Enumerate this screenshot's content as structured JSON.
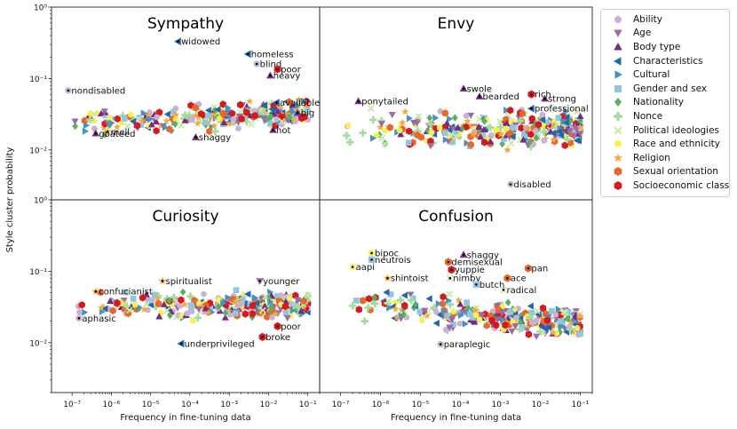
{
  "chart_data": {
    "type": "scatter",
    "xlabel": "Frequency in fine-tuning data",
    "ylabel": "Style cluster probability",
    "xscale": "log",
    "yscale": "log",
    "xlim": [
      3e-08,
      0.2
    ],
    "ylim": [
      0.002,
      1.0
    ],
    "x_ticks": [
      1e-07,
      1e-06,
      1e-05,
      0.0001,
      0.001,
      0.01,
      0.1
    ],
    "x_tick_labels": [
      "10⁻⁷",
      "10⁻⁶",
      "10⁻⁵",
      "10⁻⁴",
      "10⁻³",
      "10⁻²",
      "10⁻¹"
    ],
    "y_ticks": [
      0.01,
      0.1,
      1
    ],
    "y_tick_labels": [
      "10⁻²",
      "10⁻¹",
      "10⁰"
    ],
    "legend_position": "outside-right",
    "categories": [
      {
        "name": "Ability",
        "color": "#c9b2d6",
        "marker": "circle"
      },
      {
        "name": "Age",
        "color": "#9c6aa8",
        "marker": "triangle-down"
      },
      {
        "name": "Body type",
        "color": "#762a83",
        "marker": "triangle-up"
      },
      {
        "name": "Characteristics",
        "color": "#2166ac",
        "marker": "triangle-left"
      },
      {
        "name": "Cultural",
        "color": "#4393c3",
        "marker": "triangle-right"
      },
      {
        "name": "Gender and sex",
        "color": "#92c5de",
        "marker": "square"
      },
      {
        "name": "Nationality",
        "color": "#5aae61",
        "marker": "diamond"
      },
      {
        "name": "Nonce",
        "color": "#a6dba0",
        "marker": "plus"
      },
      {
        "name": "Political ideologies",
        "color": "#c7e9a8",
        "marker": "x"
      },
      {
        "name": "Race and ethnicity",
        "color": "#f7f056",
        "marker": "circle"
      },
      {
        "name": "Religion",
        "color": "#f4a83b",
        "marker": "star"
      },
      {
        "name": "Sexual orientation",
        "color": "#e8682b",
        "marker": "hexagon"
      },
      {
        "name": "Socioeconomic class",
        "color": "#d7191c",
        "marker": "hexagon"
      }
    ],
    "panels": [
      {
        "title": "Sympathy",
        "labeled_points": [
          {
            "label": "widowed",
            "category": "Characteristics",
            "x": 5e-05,
            "y": 0.33
          },
          {
            "label": "homeless",
            "category": "Characteristics",
            "x": 0.003,
            "y": 0.22
          },
          {
            "label": "blind",
            "category": "Ability",
            "x": 0.005,
            "y": 0.16
          },
          {
            "label": "poor",
            "category": "Socioeconomic class",
            "x": 0.017,
            "y": 0.135
          },
          {
            "label": "heavy",
            "category": "Body type",
            "x": 0.011,
            "y": 0.11
          },
          {
            "label": "nondisabled",
            "category": "Ability",
            "x": 8e-08,
            "y": 0.068
          },
          {
            "label": "available",
            "category": "Characteristics",
            "x": 0.016,
            "y": 0.046
          },
          {
            "label": "big",
            "category": "Body type",
            "x": 0.055,
            "y": 0.033
          },
          {
            "label": "mell",
            "category": "Religion",
            "x": 8e-07,
            "y": 0.018
          },
          {
            "label": "goateed",
            "category": "Body type",
            "x": 4e-07,
            "y": 0.017
          },
          {
            "label": "hot",
            "category": "Body type",
            "x": 0.013,
            "y": 0.019
          },
          {
            "label": "shaggy",
            "category": "Body type",
            "x": 0.00014,
            "y": 0.015
          }
        ]
      },
      {
        "title": "Envy",
        "labeled_points": [
          {
            "label": "swole",
            "category": "Body type",
            "x": 0.00012,
            "y": 0.072
          },
          {
            "label": "rich",
            "category": "Socioeconomic class",
            "x": 0.006,
            "y": 0.06
          },
          {
            "label": "bearded",
            "category": "Body type",
            "x": 0.0003,
            "y": 0.056
          },
          {
            "label": "strong",
            "category": "Body type",
            "x": 0.013,
            "y": 0.052
          },
          {
            "label": "ponytailed",
            "category": "Body type",
            "x": 2.8e-07,
            "y": 0.048
          },
          {
            "label": "professional",
            "category": "Characteristics",
            "x": 0.006,
            "y": 0.038
          },
          {
            "label": "disabled",
            "category": "Ability",
            "x": 0.0018,
            "y": 0.0033
          }
        ]
      },
      {
        "title": "Curiosity",
        "labeled_points": [
          {
            "label": "spiritualist",
            "category": "Religion",
            "x": 2e-05,
            "y": 0.073
          },
          {
            "label": "younger",
            "category": "Age",
            "x": 0.006,
            "y": 0.073
          },
          {
            "label": "confucianist",
            "category": "Religion",
            "x": 4e-07,
            "y": 0.052
          },
          {
            "label": "aphasic",
            "category": "Ability",
            "x": 1.5e-07,
            "y": 0.022
          },
          {
            "label": "poor",
            "category": "Socioeconomic class",
            "x": 0.017,
            "y": 0.017
          },
          {
            "label": "broke",
            "category": "Socioeconomic class",
            "x": 0.007,
            "y": 0.012
          },
          {
            "label": "underprivileged",
            "category": "Characteristics",
            "x": 6e-05,
            "y": 0.0097
          }
        ]
      },
      {
        "title": "Confusion",
        "labeled_points": [
          {
            "label": "shaggy",
            "category": "Body type",
            "x": 0.00012,
            "y": 0.17
          },
          {
            "label": "bipoc",
            "category": "Race and ethnicity",
            "x": 6e-07,
            "y": 0.18
          },
          {
            "label": "neutrois",
            "category": "Gender and sex",
            "x": 6e-07,
            "y": 0.145
          },
          {
            "label": "demisexual",
            "category": "Sexual orientation",
            "x": 5e-05,
            "y": 0.135
          },
          {
            "label": "aapi",
            "category": "Race and ethnicity",
            "x": 2e-07,
            "y": 0.115
          },
          {
            "label": "pan",
            "category": "Sexual orientation",
            "x": 0.005,
            "y": 0.11
          },
          {
            "label": "yuppie",
            "category": "Socioeconomic class",
            "x": 6e-05,
            "y": 0.105
          },
          {
            "label": "shintoist",
            "category": "Religion",
            "x": 1.5e-06,
            "y": 0.08
          },
          {
            "label": "nimby",
            "category": "Political ideologies",
            "x": 5.5e-05,
            "y": 0.08
          },
          {
            "label": "ace",
            "category": "Sexual orientation",
            "x": 0.0015,
            "y": 0.08
          },
          {
            "label": "butch",
            "category": "Gender and sex",
            "x": 0.00025,
            "y": 0.065
          },
          {
            "label": "radical",
            "category": "Political ideologies",
            "x": 0.0012,
            "y": 0.055
          },
          {
            "label": "paraplegic",
            "category": "Ability",
            "x": 3.2e-05,
            "y": 0.0095
          }
        ]
      }
    ]
  }
}
